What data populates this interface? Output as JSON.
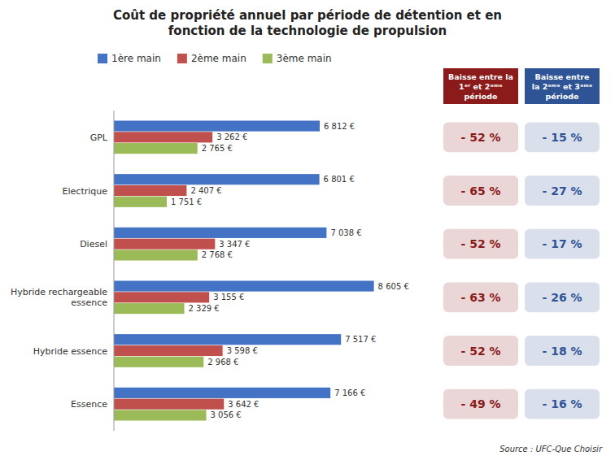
{
  "chart_data": [
    {
      "type": "bar",
      "orientation": "horizontal",
      "title": "Coût de propriété annuel par période de détention et en\nfonction de la technologie de propulsion",
      "source": "Source : UFC-Que Choisir",
      "categories": [
        "GPL",
        "Electrique",
        "Diesel",
        "Hybride rechargeable\nessence",
        "Hybride essence",
        "Essence"
      ],
      "series": [
        {
          "name": "1ère main",
          "color": "#4472C4",
          "values": [
            6812,
            6801,
            7038,
            8605,
            7517,
            7166
          ],
          "value_labels": [
            "6 812 €",
            "6 801 €",
            "7 038 €",
            "8 605 €",
            "7 517 €",
            "7 166 €"
          ]
        },
        {
          "name": "2ème main",
          "color": "#C0504D",
          "values": [
            3262,
            2407,
            3347,
            3155,
            3598,
            3642
          ],
          "value_labels": [
            "3 262 €",
            "2 407 €",
            "3 347 €",
            "3 155 €",
            "3 598 €",
            "3 642 €"
          ]
        },
        {
          "name": "3ème main",
          "color": "#9BBB59",
          "values": [
            2765,
            1751,
            2768,
            2329,
            2968,
            3056
          ],
          "value_labels": [
            "2 765 €",
            "1 751 €",
            "2 768 €",
            "2 329 €",
            "2 968 €",
            "3 056 €"
          ]
        }
      ],
      "xlim": [
        0,
        10500
      ],
      "data_labels": true,
      "tick_labels": "y",
      "grid": false,
      "legend": "top"
    },
    {
      "type": "table",
      "columns": [
        {
          "name": "Baisse entre la\n1ᵉʳ et 2ᵉᵐᵉ\npériode",
          "color": "#8B1A1A",
          "values": [
            -52,
            -65,
            -52,
            -63,
            -52,
            -49
          ],
          "value_labels": [
            "- 52 %",
            "- 65 %",
            "- 52 %",
            "- 63 %",
            "- 52 %",
            "- 49 %"
          ]
        },
        {
          "name": "Baisse entre\nla 2ᵉᵐᵉ et 3ᵉᵐᵉ\npériode",
          "color": "#2F5496",
          "values": [
            -15,
            -27,
            -17,
            -26,
            -18,
            -16
          ],
          "value_labels": [
            "- 15 %",
            "- 27 %",
            "- 17 %",
            "- 26 %",
            "- 18 %",
            "- 16 %"
          ]
        }
      ]
    }
  ]
}
